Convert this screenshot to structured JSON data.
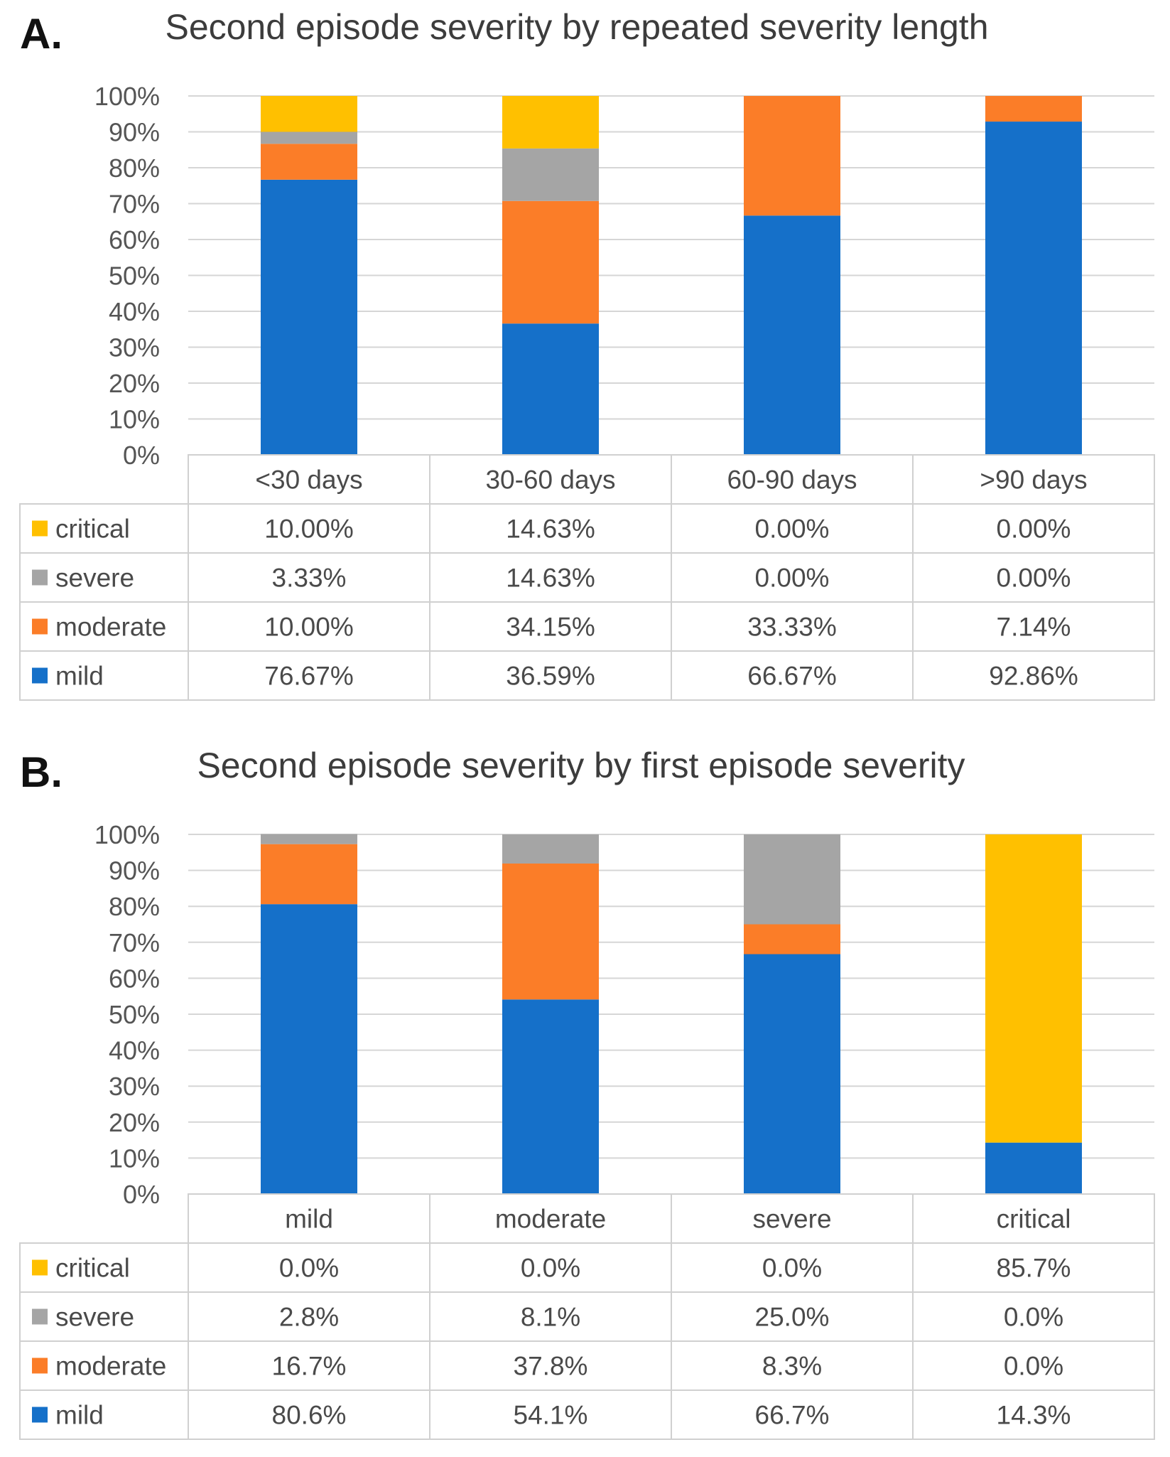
{
  "series_colors": {
    "mild": "#1570c9",
    "moderate": "#fb7d28",
    "severe": "#a5a5a5",
    "critical": "#ffc000"
  },
  "chart_data": [
    {
      "type": "bar",
      "stacked": true,
      "panel_label": "A.",
      "title": "Second episode severity by repeated severity length",
      "categories": [
        "<30 days",
        "30-60 days",
        "60-90 days",
        ">90 days"
      ],
      "ylim": [
        0,
        100
      ],
      "yticks": [
        "0%",
        "10%",
        "20%",
        "30%",
        "40%",
        "50%",
        "60%",
        "70%",
        "80%",
        "90%",
        "100%"
      ],
      "series": [
        {
          "name": "mild",
          "values": [
            76.67,
            36.59,
            66.67,
            92.86
          ],
          "labels": [
            "76.67%",
            "36.59%",
            "66.67%",
            "92.86%"
          ]
        },
        {
          "name": "moderate",
          "values": [
            10.0,
            34.15,
            33.33,
            7.14
          ],
          "labels": [
            "10.00%",
            "34.15%",
            "33.33%",
            "7.14%"
          ]
        },
        {
          "name": "severe",
          "values": [
            3.33,
            14.63,
            0.0,
            0.0
          ],
          "labels": [
            "3.33%",
            "14.63%",
            "0.00%",
            "0.00%"
          ]
        },
        {
          "name": "critical",
          "values": [
            10.0,
            14.63,
            0.0,
            0.0
          ],
          "labels": [
            "10.00%",
            "14.63%",
            "0.00%",
            "0.00%"
          ]
        }
      ]
    },
    {
      "type": "bar",
      "stacked": true,
      "panel_label": "B.",
      "title": "Second episode severity by first episode severity",
      "categories": [
        "mild",
        "moderate",
        "severe",
        "critical"
      ],
      "ylim": [
        0,
        100
      ],
      "yticks": [
        "0%",
        "10%",
        "20%",
        "30%",
        "40%",
        "50%",
        "60%",
        "70%",
        "80%",
        "90%",
        "100%"
      ],
      "series": [
        {
          "name": "mild",
          "values": [
            80.6,
            54.1,
            66.7,
            14.3
          ],
          "labels": [
            "80.6%",
            "54.1%",
            "66.7%",
            "14.3%"
          ]
        },
        {
          "name": "moderate",
          "values": [
            16.7,
            37.8,
            8.3,
            0.0
          ],
          "labels": [
            "16.7%",
            "37.8%",
            "8.3%",
            "0.0%"
          ]
        },
        {
          "name": "severe",
          "values": [
            2.8,
            8.1,
            25.0,
            0.0
          ],
          "labels": [
            "2.8%",
            "8.1%",
            "25.0%",
            "0.0%"
          ]
        },
        {
          "name": "critical",
          "values": [
            0.0,
            0.0,
            0.0,
            85.7
          ],
          "labels": [
            "0.0%",
            "0.0%",
            "0.0%",
            "85.7%"
          ]
        }
      ]
    }
  ]
}
